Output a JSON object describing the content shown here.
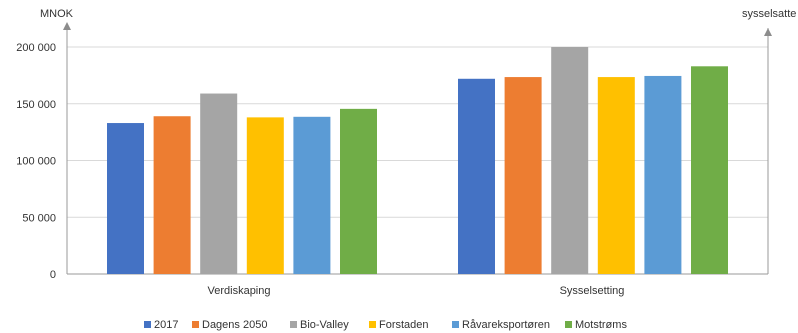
{
  "chart_data": {
    "type": "bar",
    "left_axis_title": "MNOK",
    "right_axis_title": "sysselsatte",
    "categories": [
      "Verdiskaping",
      "Sysselsetting"
    ],
    "ylim": [
      0,
      200000
    ],
    "y_ticks": [
      0,
      50000,
      100000,
      150000,
      200000
    ],
    "y_tick_labels": [
      "0",
      "50 000",
      "100 000",
      "150 000",
      "200 000"
    ],
    "grid": true,
    "legend_position": "bottom",
    "series": [
      {
        "name": "2017",
        "color": "#4472C4",
        "values": [
          133000,
          172000
        ]
      },
      {
        "name": "Dagens 2050",
        "color": "#ED7D31",
        "values": [
          139000,
          173500
        ]
      },
      {
        "name": "Bio-Valley",
        "color": "#A5A5A5",
        "values": [
          159000,
          200000
        ]
      },
      {
        "name": "Forstaden",
        "color": "#FFC000",
        "values": [
          138000,
          173500
        ]
      },
      {
        "name": "Råvareksportøren",
        "color": "#5B9BD5",
        "values": [
          138500,
          174500
        ]
      },
      {
        "name": "Motstrøms",
        "color": "#70AD47",
        "values": [
          145500,
          183000
        ]
      }
    ]
  }
}
